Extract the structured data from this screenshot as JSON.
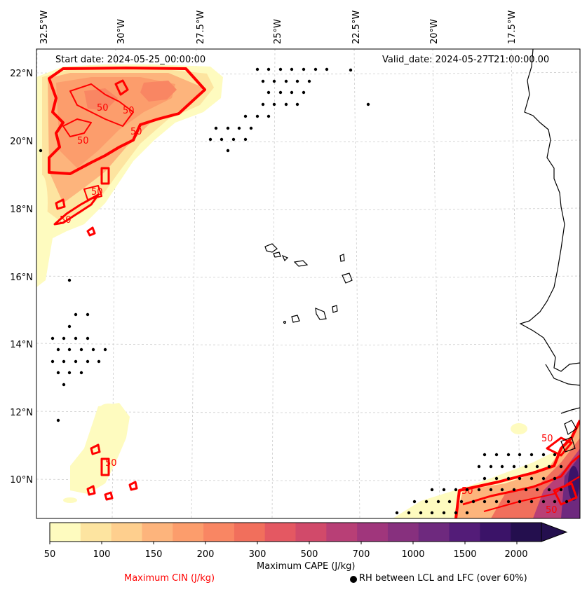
{
  "header": {
    "start": "Start date: 2024-05-25_00:00:00",
    "valid": "Valid_date: 2024-05-27T21:00:00.00"
  },
  "lon_labels": [
    "32.5°W",
    "30°W",
    "27.5°W",
    "25°W",
    "22.5°W",
    "20°W",
    "17.5°W"
  ],
  "lat_labels": [
    "22°N",
    "20°N",
    "18°N",
    "16°N",
    "14°N",
    "12°N",
    "10°N"
  ],
  "contour_labels": [
    "50",
    "50",
    "50",
    "50",
    "50",
    "50",
    "50",
    "50",
    "50",
    "50"
  ],
  "colorbar": {
    "ticks": [
      "50",
      "100",
      "150",
      "200",
      "300",
      "500",
      "700",
      "1000",
      "1500",
      "2000"
    ],
    "colors": [
      "#fefbbf",
      "#fde4a0",
      "#fecf8e",
      "#fdb47c",
      "#fc9d6c",
      "#f98663",
      "#f16f5c",
      "#e45862",
      "#d14a6a",
      "#b83f76",
      "#a0367c",
      "#87307e",
      "#6e297e",
      "#531c78",
      "#3b1368",
      "#240f4e"
    ],
    "cape_title": "Maximum CAPE (J/kg)",
    "cin_title": "Maximum CIN (J/kg)",
    "rh_title": "RH between LCL and LFC (over 60%)"
  }
}
